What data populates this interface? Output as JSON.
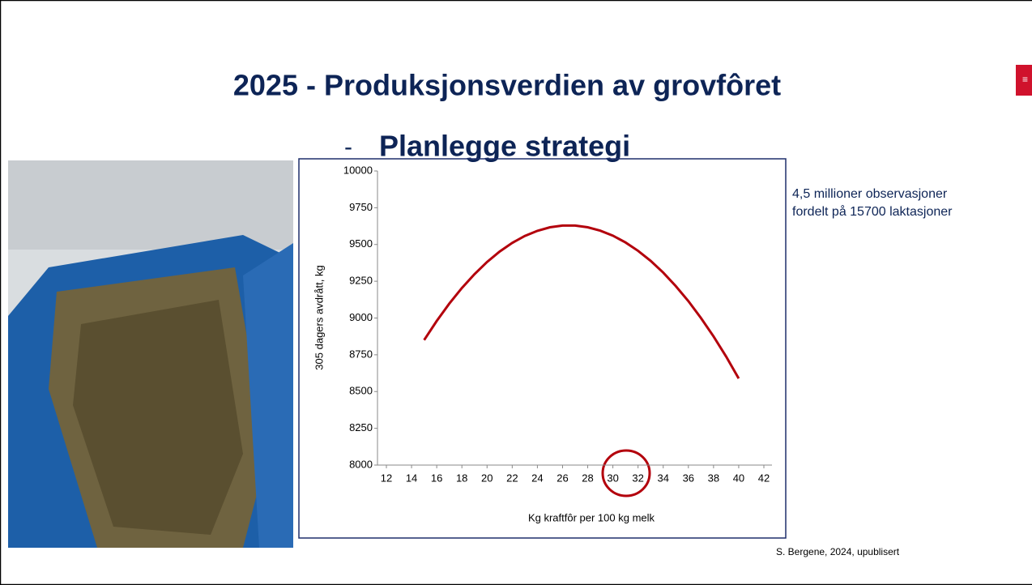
{
  "slide": {
    "title": "2025 - Produksjonsverdien av grovfôret",
    "subtitle_dash": "-",
    "subtitle": "Planlegge strategi",
    "note_lines": [
      "4,5 millioner observasjoner",
      "fordelt på 15700 laktasjoner"
    ],
    "source": "S. Bergene, 2024, upublisert"
  },
  "chart_data": {
    "type": "line",
    "x_label": "Kg kraftfôr per 100 kg melk",
    "y_label": "305 dagers avdrått, kg",
    "x": [
      15,
      16,
      17,
      18,
      19,
      20,
      21,
      22,
      23,
      24,
      25,
      26,
      27,
      28,
      29,
      30,
      31,
      32,
      33,
      34,
      35,
      36,
      37,
      38,
      39,
      40
    ],
    "series": [
      {
        "name": "305 dagers avdrått",
        "color": "#b3000c",
        "values": [
          8850,
          8980,
          9098,
          9204,
          9298,
          9381,
          9452,
          9511,
          9558,
          9593,
          9617,
          9629,
          9629,
          9617,
          9594,
          9560,
          9514,
          9457,
          9389,
          9309,
          9217,
          9115,
          9000,
          8875,
          8738,
          8589
        ]
      }
    ],
    "xlim": [
      12,
      42
    ],
    "xticks": [
      12,
      14,
      16,
      18,
      20,
      22,
      24,
      26,
      28,
      30,
      32,
      34,
      36,
      38,
      40,
      42
    ],
    "ylim": [
      8000,
      10000
    ],
    "yticks": [
      8000,
      8250,
      8500,
      8750,
      9000,
      9250,
      9500,
      9750,
      10000
    ],
    "grid": false
  }
}
